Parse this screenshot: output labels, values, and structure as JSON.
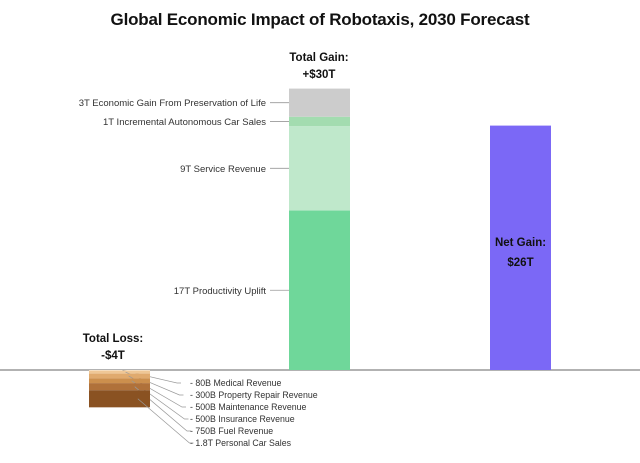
{
  "chart_data": {
    "type": "bar",
    "title": "Global Economic Impact of Robotaxis, 2030 Forecast",
    "unit": "trillion USD",
    "ylim": [
      -4,
      31
    ],
    "grid": false,
    "legend": "none",
    "gain": {
      "total_label_line1": "Total Gain:",
      "total_label_line2": "+$30T",
      "segments": [
        {
          "label": "17T Productivity Uplift",
          "value": 17,
          "color": "#6fd79a"
        },
        {
          "label": "9T Service Revenue",
          "value": 9,
          "color": "#bfe8cb"
        },
        {
          "label": "1T Incremental Autonomous Car Sales",
          "value": 1,
          "color": "#a3dcb0"
        },
        {
          "label": "3T Economic Gain From Preservation of Life",
          "value": 3,
          "color": "#cccccc"
        }
      ]
    },
    "net": {
      "label_line1": "Net Gain:",
      "label_line2": "$26T",
      "value": 26,
      "color": "#7b68f6"
    },
    "loss": {
      "total_label_line1": "Total Loss:",
      "total_label_line2": "-$4T",
      "segments": [
        {
          "label": "- 80B Medical Revenue",
          "value": -0.08,
          "color": "#f6dfc0"
        },
        {
          "label": "- 300B Property Repair Revenue",
          "value": -0.3,
          "color": "#efc796"
        },
        {
          "label": "- 500B Maintenance Revenue",
          "value": -0.5,
          "color": "#e0aa6e"
        },
        {
          "label": "- 500B Insurance Revenue",
          "value": -0.5,
          "color": "#cc8f4d"
        },
        {
          "label": "- 750B Fuel Revenue",
          "value": -0.75,
          "color": "#b0713a"
        },
        {
          "label": "- 1.8T Personal Car Sales",
          "value": -1.8,
          "color": "#8a5222"
        }
      ]
    }
  }
}
